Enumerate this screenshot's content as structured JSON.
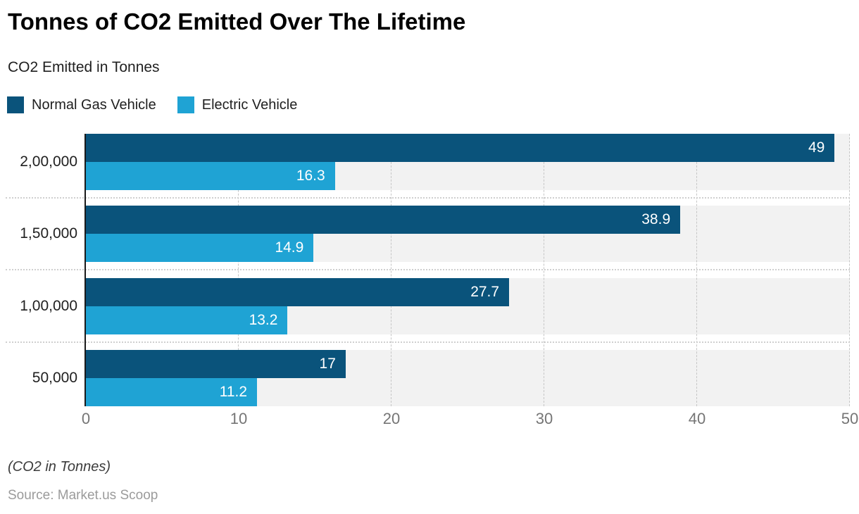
{
  "header": {
    "title": "Tonnes of CO2 Emitted Over The Lifetime",
    "subtitle": "CO2 Emitted in Tonnes"
  },
  "legend": [
    {
      "label": "Normal Gas Vehicle",
      "color": "#0a537b"
    },
    {
      "label": "Electric Vehicle",
      "color": "#1fa3d4"
    }
  ],
  "chart_data": {
    "type": "bar",
    "orientation": "horizontal",
    "title": "Tonnes of CO2 Emitted Over The Lifetime",
    "subtitle": "CO2 Emitted in Tonnes",
    "categories": [
      "2,00,000",
      "1,50,000",
      "1,00,000",
      "50,000"
    ],
    "series": [
      {
        "name": "Normal Gas Vehicle",
        "color": "#0a537b",
        "values": [
          49,
          38.9,
          27.7,
          17
        ]
      },
      {
        "name": "Electric Vehicle",
        "color": "#1fa3d4",
        "values": [
          16.3,
          14.9,
          13.2,
          11.2
        ]
      }
    ],
    "value_labels": [
      [
        "49",
        "38.9",
        "27.7",
        "17"
      ],
      [
        "16.3",
        "14.9",
        "13.2",
        "11.2"
      ]
    ],
    "x_ticks": [
      "0",
      "10",
      "20",
      "30",
      "40",
      "50"
    ],
    "xlim": [
      0,
      50
    ],
    "grid": "vertical-dashed",
    "legend_position": "top-left",
    "plot_bg": "#f2f2f2"
  },
  "footer": {
    "note": "(CO2 in Tonnes)",
    "source": "Source: Market.us Scoop"
  }
}
